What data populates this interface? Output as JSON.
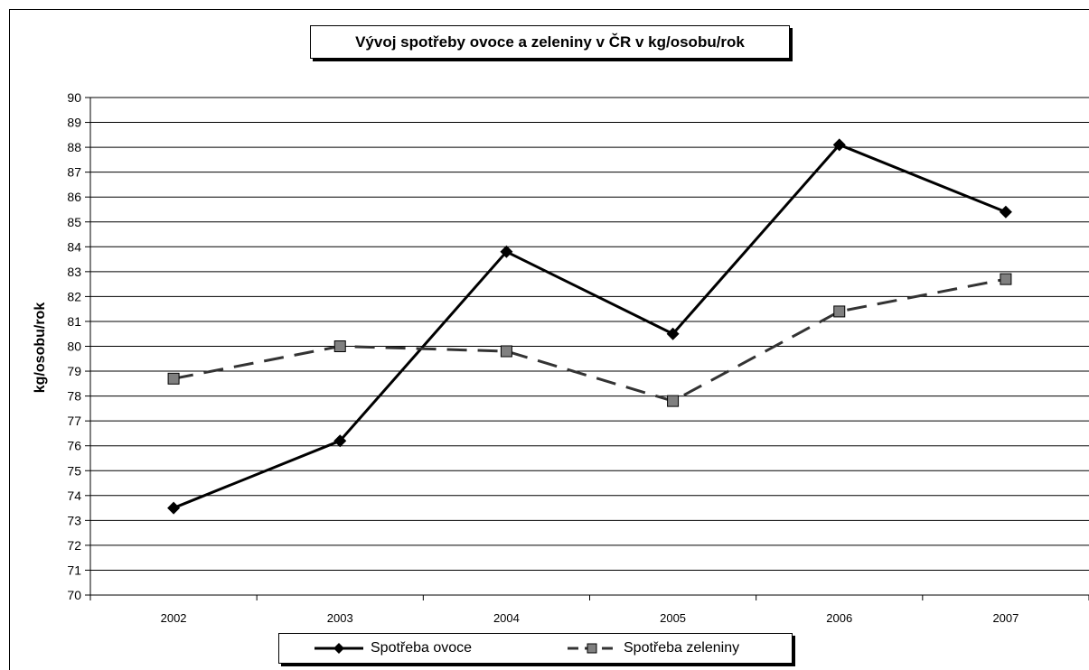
{
  "chart_data": {
    "type": "line",
    "title": "Vývoj spotřeby ovoce a zeleniny v ČR v kg/osobu/rok",
    "xlabel": "",
    "ylabel": "kg/osobu/rok",
    "categories": [
      "2002",
      "2003",
      "2004",
      "2005",
      "2006",
      "2007"
    ],
    "ylim": [
      70,
      90
    ],
    "ytick_step": 1,
    "grid": "horizontal",
    "legend": "bottom",
    "series": [
      {
        "name": "Spotřeba ovoce",
        "values": [
          73.5,
          76.2,
          83.8,
          80.5,
          88.1,
          85.4
        ],
        "color": "#000000",
        "style": "solid",
        "marker": "diamond"
      },
      {
        "name": "Spotřeba zeleniny",
        "values": [
          78.7,
          80.0,
          79.8,
          77.8,
          81.4,
          82.7
        ],
        "color": "#333333",
        "style": "dashed",
        "marker": "square"
      }
    ]
  }
}
